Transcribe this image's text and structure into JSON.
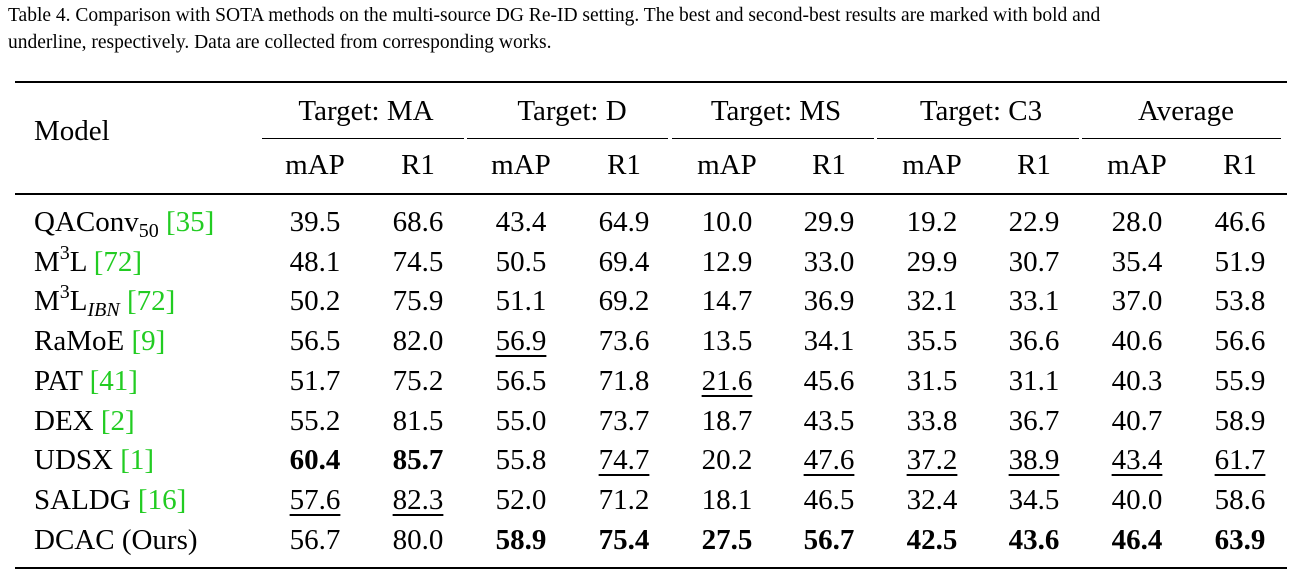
{
  "caption": {
    "line1": "Table 4. Comparison with SOTA methods on the multi-source DG Re-ID setting. The best and second-best results are marked with bold and",
    "line2": "underline, respectively. Data are collected from corresponding works."
  },
  "header": {
    "model": "Model",
    "groups": [
      "Target: MA",
      "Target: D",
      "Target: MS",
      "Target: C3",
      "Average"
    ],
    "metrics": [
      "mAP",
      "R1",
      "mAP",
      "R1",
      "mAP",
      "R1",
      "mAP",
      "R1",
      "mAP",
      "R1"
    ]
  },
  "rows": [
    {
      "name": "QAConv",
      "sub": "50",
      "sup": "",
      "cite": "[35]",
      "values": [
        "39.5",
        "68.6",
        "43.4",
        "64.9",
        "10.0",
        "29.9",
        "19.2",
        "22.9",
        "28.0",
        "46.6"
      ],
      "styles": [
        "",
        "",
        "",
        "",
        "",
        "",
        "",
        "",
        "",
        ""
      ]
    },
    {
      "name": "M",
      "sup": "3",
      "suffix": "L",
      "sub": "",
      "cite": "[72]",
      "values": [
        "48.1",
        "74.5",
        "50.5",
        "69.4",
        "12.9",
        "33.0",
        "29.9",
        "30.7",
        "35.4",
        "51.9"
      ],
      "styles": [
        "",
        "",
        "",
        "",
        "",
        "",
        "",
        "",
        "",
        ""
      ]
    },
    {
      "name": "M",
      "sup": "3",
      "suffix": "L",
      "sub": "IBN",
      "cite": "[72]",
      "values": [
        "50.2",
        "75.9",
        "51.1",
        "69.2",
        "14.7",
        "36.9",
        "32.1",
        "33.1",
        "37.0",
        "53.8"
      ],
      "styles": [
        "",
        "",
        "",
        "",
        "",
        "",
        "",
        "",
        "",
        ""
      ]
    },
    {
      "name": "RaMoE",
      "sup": "",
      "sub": "",
      "cite": "[9]",
      "values": [
        "56.5",
        "82.0",
        "56.9",
        "73.6",
        "13.5",
        "34.1",
        "35.5",
        "36.6",
        "40.6",
        "56.6"
      ],
      "styles": [
        "",
        "",
        "u",
        "",
        "",
        "",
        "",
        "",
        "",
        ""
      ]
    },
    {
      "name": "PAT",
      "sup": "",
      "sub": "",
      "cite": "[41]",
      "values": [
        "51.7",
        "75.2",
        "56.5",
        "71.8",
        "21.6",
        "45.6",
        "31.5",
        "31.1",
        "40.3",
        "55.9"
      ],
      "styles": [
        "",
        "",
        "",
        "",
        "u",
        "",
        "",
        "",
        "",
        ""
      ]
    },
    {
      "name": "DEX",
      "sup": "",
      "sub": "",
      "cite": "[2]",
      "values": [
        "55.2",
        "81.5",
        "55.0",
        "73.7",
        "18.7",
        "43.5",
        "33.8",
        "36.7",
        "40.7",
        "58.9"
      ],
      "styles": [
        "",
        "",
        "",
        "",
        "",
        "",
        "",
        "",
        "",
        ""
      ]
    },
    {
      "name": "UDSX",
      "sup": "",
      "sub": "",
      "cite": "[1]",
      "values": [
        "60.4",
        "85.7",
        "55.8",
        "74.7",
        "20.2",
        "47.6",
        "37.2",
        "38.9",
        "43.4",
        "61.7"
      ],
      "styles": [
        "b",
        "b",
        "",
        "u",
        "",
        "u",
        "u",
        "u",
        "u",
        "u"
      ]
    },
    {
      "name": "SALDG",
      "sup": "",
      "sub": "",
      "cite": "[16]",
      "values": [
        "57.6",
        "82.3",
        "52.0",
        "71.2",
        "18.1",
        "46.5",
        "32.4",
        "34.5",
        "40.0",
        "58.6"
      ],
      "styles": [
        "u",
        "u",
        "",
        "",
        "",
        "",
        "",
        "",
        "",
        ""
      ]
    },
    {
      "name": "DCAC (Ours)",
      "sup": "",
      "sub": "",
      "cite": "",
      "values": [
        "56.7",
        "80.0",
        "58.9",
        "75.4",
        "27.5",
        "56.7",
        "42.5",
        "43.6",
        "46.4",
        "63.9"
      ],
      "styles": [
        "",
        "",
        "b",
        "b",
        "b",
        "b",
        "b",
        "b",
        "b",
        "b"
      ]
    }
  ]
}
